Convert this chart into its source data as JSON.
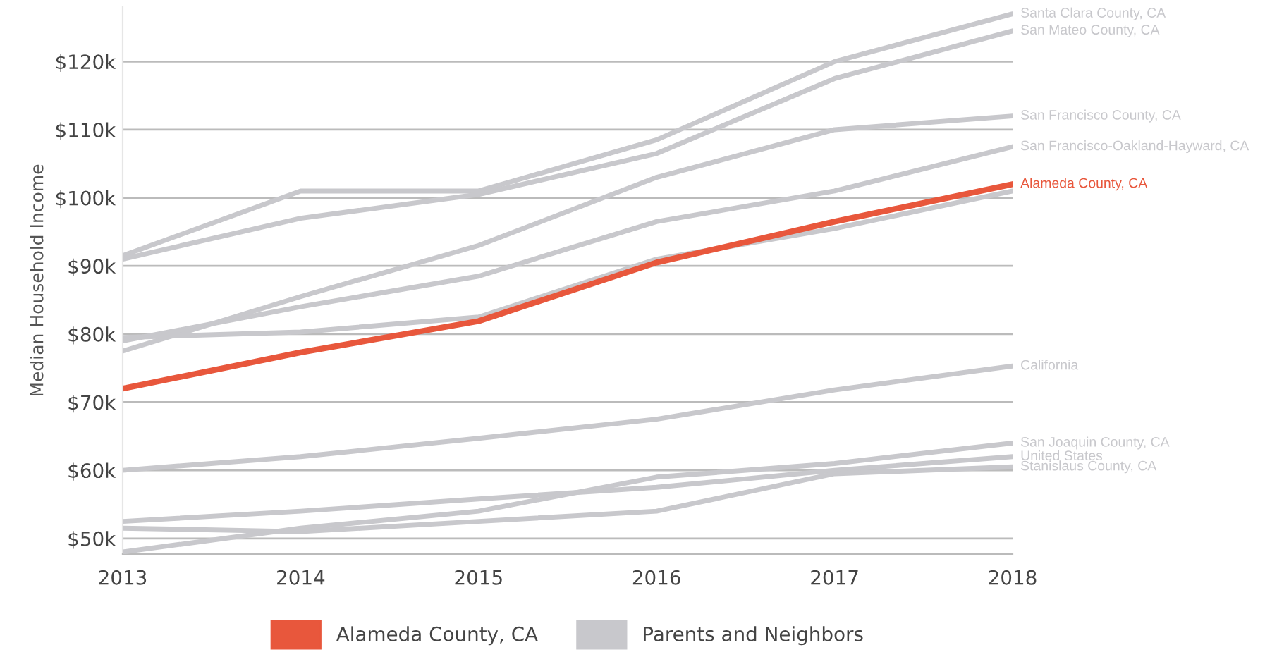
{
  "chart_data": {
    "type": "line",
    "ylabel": "Median Household Income",
    "x": [
      2013,
      2014,
      2015,
      2016,
      2017,
      2018
    ],
    "series": [
      {
        "name": "Santa Clara County, CA",
        "color": "#c8c8cc",
        "values": [
          91.5,
          101,
          101,
          108.5,
          120,
          127
        ]
      },
      {
        "name": "San Mateo County, CA",
        "color": "#c8c8cc",
        "values": [
          91,
          97,
          100.5,
          106.5,
          117.5,
          124.5
        ]
      },
      {
        "name": "San Francisco County, CA",
        "color": "#c8c8cc",
        "values": [
          77.5,
          85.5,
          93,
          103,
          110,
          112
        ]
      },
      {
        "name": "San Francisco-Oakland-Hayward, CA",
        "color": "#c8c8cc",
        "values": [
          79,
          84,
          88.5,
          96.5,
          101,
          107.5
        ]
      },
      {
        "color": "#c8c8cc",
        "values": [
          79.5,
          80.3,
          82.5,
          91,
          95.5,
          101
        ]
      },
      {
        "name": "California",
        "color": "#c8c8cc",
        "values": [
          60,
          62,
          64.7,
          67.5,
          71.8,
          75.3
        ]
      },
      {
        "name": "San Joaquin County, CA",
        "color": "#c8c8cc",
        "values": [
          48,
          51.5,
          54,
          59,
          61,
          64
        ]
      },
      {
        "name": "United States",
        "color": "#c8c8cc",
        "values": [
          52.5,
          54,
          55.8,
          57.5,
          60,
          62
        ]
      },
      {
        "name": "Stanislaus County, CA",
        "color": "#c8c8cc",
        "values": [
          51.5,
          51,
          52.5,
          54,
          59.5,
          60.5
        ]
      },
      {
        "name": "Alameda County, CA",
        "color": "#e8573c",
        "values": [
          72,
          77.3,
          81.9,
          90.5,
          96.5,
          102
        ]
      }
    ],
    "xlim": [
      2013,
      2018
    ],
    "xticks": [
      2013,
      2014,
      2015,
      2016,
      2017,
      2018
    ],
    "ylim": [
      47.7,
      128
    ],
    "yticks": [
      {
        "value": 50,
        "label": "$50k"
      },
      {
        "value": 60,
        "label": "$60k"
      },
      {
        "value": 70,
        "label": "$70k"
      },
      {
        "value": 80,
        "label": "$80k"
      },
      {
        "value": 90,
        "label": "$90k"
      },
      {
        "value": 100,
        "label": "$100k"
      },
      {
        "value": 110,
        "label": "$110k"
      },
      {
        "value": 120,
        "label": "$120k"
      }
    ],
    "grid": "y",
    "legend": "bottom",
    "marker": "none",
    "line_style": "solid",
    "annotations": [
      "Parents and Neighbors"
    ]
  }
}
